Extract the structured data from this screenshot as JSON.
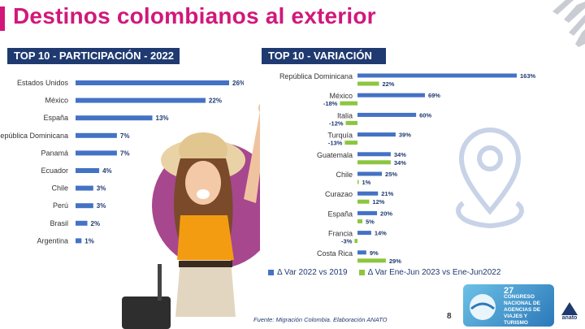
{
  "title": "Destinos colombianos al exterior",
  "colors": {
    "accent": "#d1187a",
    "navy": "#1f3a70",
    "bar_blue": "#4472c4",
    "bar_green": "#8cc63f"
  },
  "chart_data": [
    {
      "type": "bar",
      "orientation": "horizontal",
      "title": "TOP 10 - PARTICIPACIÓN -  2022",
      "categories": [
        "Estados Unidos",
        "México",
        "España",
        "República Dominicana",
        "Panamá",
        "Ecuador",
        "Chile",
        "Perú",
        "Brasil",
        "Argentina"
      ],
      "values": [
        26,
        22,
        13,
        7,
        7,
        4,
        3,
        3,
        2,
        1
      ],
      "value_labels": [
        "26%",
        "22%",
        "13%",
        "7%",
        "7%",
        "4%",
        "3%",
        "3%",
        "2%",
        "1%"
      ],
      "xlim": [
        0,
        26
      ],
      "grid": false
    },
    {
      "type": "bar",
      "orientation": "horizontal",
      "title": "TOP 10 - VARIACIÓN",
      "categories": [
        "República Dominicana",
        "México",
        "Italia",
        "Turquía",
        "Guatemala",
        "Chile",
        "Curazao",
        "España",
        "Francia",
        "Costa Rica"
      ],
      "series": [
        {
          "name": "Δ Var 2022 vs 2019",
          "values": [
            163,
            69,
            60,
            39,
            34,
            25,
            21,
            20,
            14,
            9
          ],
          "labels": [
            "163%",
            "69%",
            "60%",
            "39%",
            "34%",
            "25%",
            "21%",
            "20%",
            "14%",
            "9%"
          ]
        },
        {
          "name": "Δ Var Ene-Jun 2023 vs Ene-Jun2022",
          "values": [
            22,
            -18,
            -12,
            -13,
            34,
            1,
            12,
            5,
            -3,
            29
          ],
          "labels": [
            "22%",
            "-18%",
            "-12%",
            "-13%",
            "34%",
            "1%",
            "12%",
            "5%",
            "-3%",
            "29%"
          ]
        }
      ],
      "legend": "bottom",
      "grid": false
    }
  ],
  "source": "Fuente: Migración Colombia. Elaboración ANATO",
  "page_number": "8",
  "event_logo": {
    "number": "27",
    "text": "CONGRESO NACIONAL DE AGENCIAS DE VIAJES Y TURISMO"
  },
  "anato_logo": "anato"
}
